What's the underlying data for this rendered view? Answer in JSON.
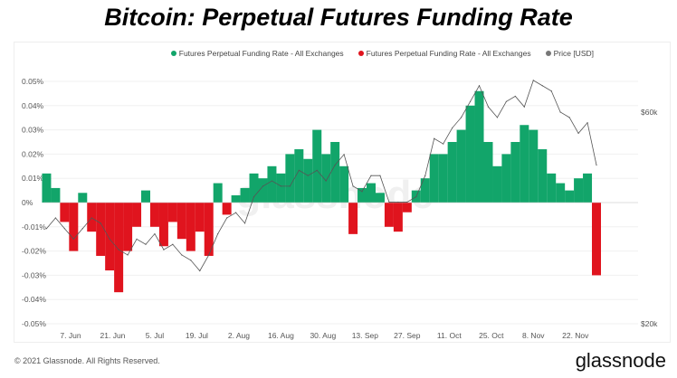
{
  "title": "Bitcoin: Perpetual Futures Funding Rate",
  "footer": "© 2021 Glassnode. All Rights Reserved.",
  "brand": "glassnode",
  "watermark": "glassnode",
  "chart_data": {
    "type": "bar",
    "title": "Bitcoin: Perpetual Futures Funding Rate",
    "legend_position": "top-right",
    "grid": true,
    "legend": [
      {
        "name": "Futures Perpetual Funding Rate - All Exchanges",
        "color": "#12a56a"
      },
      {
        "name": "Futures Perpetual Funding Rate - All Exchanges",
        "color": "#e0141e"
      },
      {
        "name": "Price [USD]",
        "color": "#777777"
      }
    ],
    "y_ticks": [
      "0.05%",
      "0.04%",
      "0.03%",
      "0.02%",
      "0.01%",
      "0%",
      "-0.01%",
      "-0.02%",
      "-0.03%",
      "-0.04%",
      "-0.05%"
    ],
    "ylim": [
      -0.05,
      0.05
    ],
    "y2_ticks": [
      "$60k",
      "$20k"
    ],
    "y2lim_usd_k": [
      20,
      60
    ],
    "x_ticks": [
      "7. Jun",
      "21. Jun",
      "5. Jul",
      "19. Jul",
      "2. Aug",
      "16. Aug",
      "30. Aug",
      "13. Sep",
      "27. Sep",
      "11. Oct",
      "25. Oct",
      "8. Nov",
      "22. Nov"
    ],
    "x": [
      "2021-05-30",
      "2021-06-02",
      "2021-06-05",
      "2021-06-08",
      "2021-06-11",
      "2021-06-14",
      "2021-06-17",
      "2021-06-20",
      "2021-06-23",
      "2021-06-26",
      "2021-06-29",
      "2021-07-02",
      "2021-07-05",
      "2021-07-08",
      "2021-07-11",
      "2021-07-14",
      "2021-07-17",
      "2021-07-20",
      "2021-07-23",
      "2021-07-26",
      "2021-07-29",
      "2021-08-01",
      "2021-08-04",
      "2021-08-07",
      "2021-08-10",
      "2021-08-13",
      "2021-08-16",
      "2021-08-19",
      "2021-08-22",
      "2021-08-25",
      "2021-08-28",
      "2021-08-31",
      "2021-09-03",
      "2021-09-06",
      "2021-09-09",
      "2021-09-12",
      "2021-09-15",
      "2021-09-18",
      "2021-09-21",
      "2021-09-24",
      "2021-09-27",
      "2021-09-30",
      "2021-10-03",
      "2021-10-06",
      "2021-10-09",
      "2021-10-12",
      "2021-10-15",
      "2021-10-18",
      "2021-10-21",
      "2021-10-24",
      "2021-10-27",
      "2021-10-30",
      "2021-11-02",
      "2021-11-05",
      "2021-11-08",
      "2021-11-11",
      "2021-11-14",
      "2021-11-17",
      "2021-11-20",
      "2021-11-23",
      "2021-11-26",
      "2021-11-29"
    ],
    "series": [
      {
        "name": "Futures Perpetual Funding Rate - All Exchanges",
        "unit": "%",
        "values": [
          0.012,
          0.006,
          -0.008,
          -0.02,
          0.004,
          -0.012,
          -0.022,
          -0.028,
          -0.037,
          -0.02,
          -0.01,
          0.005,
          -0.01,
          -0.018,
          -0.008,
          -0.015,
          -0.02,
          -0.012,
          -0.022,
          0.008,
          -0.005,
          0.003,
          0.006,
          0.012,
          0.01,
          0.015,
          0.012,
          0.02,
          0.022,
          0.018,
          0.03,
          0.02,
          0.025,
          0.015,
          -0.013,
          0.006,
          0.008,
          0.004,
          -0.01,
          -0.012,
          -0.004,
          0.005,
          0.01,
          0.02,
          0.02,
          0.025,
          0.03,
          0.04,
          0.046,
          0.025,
          0.015,
          0.02,
          0.025,
          0.032,
          0.03,
          0.022,
          0.012,
          0.008,
          0.005,
          0.01,
          0.012,
          -0.03
        ]
      },
      {
        "name": "Price [USD]",
        "unit": "$k",
        "values": [
          38,
          40,
          38,
          36,
          38,
          40,
          39,
          36,
          34,
          33,
          36,
          35,
          37,
          34,
          35,
          33,
          32,
          30,
          33,
          37,
          40,
          41,
          39,
          44,
          46,
          47,
          46,
          46,
          49,
          48,
          49,
          47,
          50,
          52,
          46,
          45,
          48,
          48,
          43,
          43,
          43,
          44,
          48,
          55,
          54,
          57,
          59,
          62,
          65,
          61,
          59,
          62,
          63,
          61,
          66,
          65,
          64,
          60,
          59,
          56,
          58,
          50
        ]
      }
    ]
  }
}
